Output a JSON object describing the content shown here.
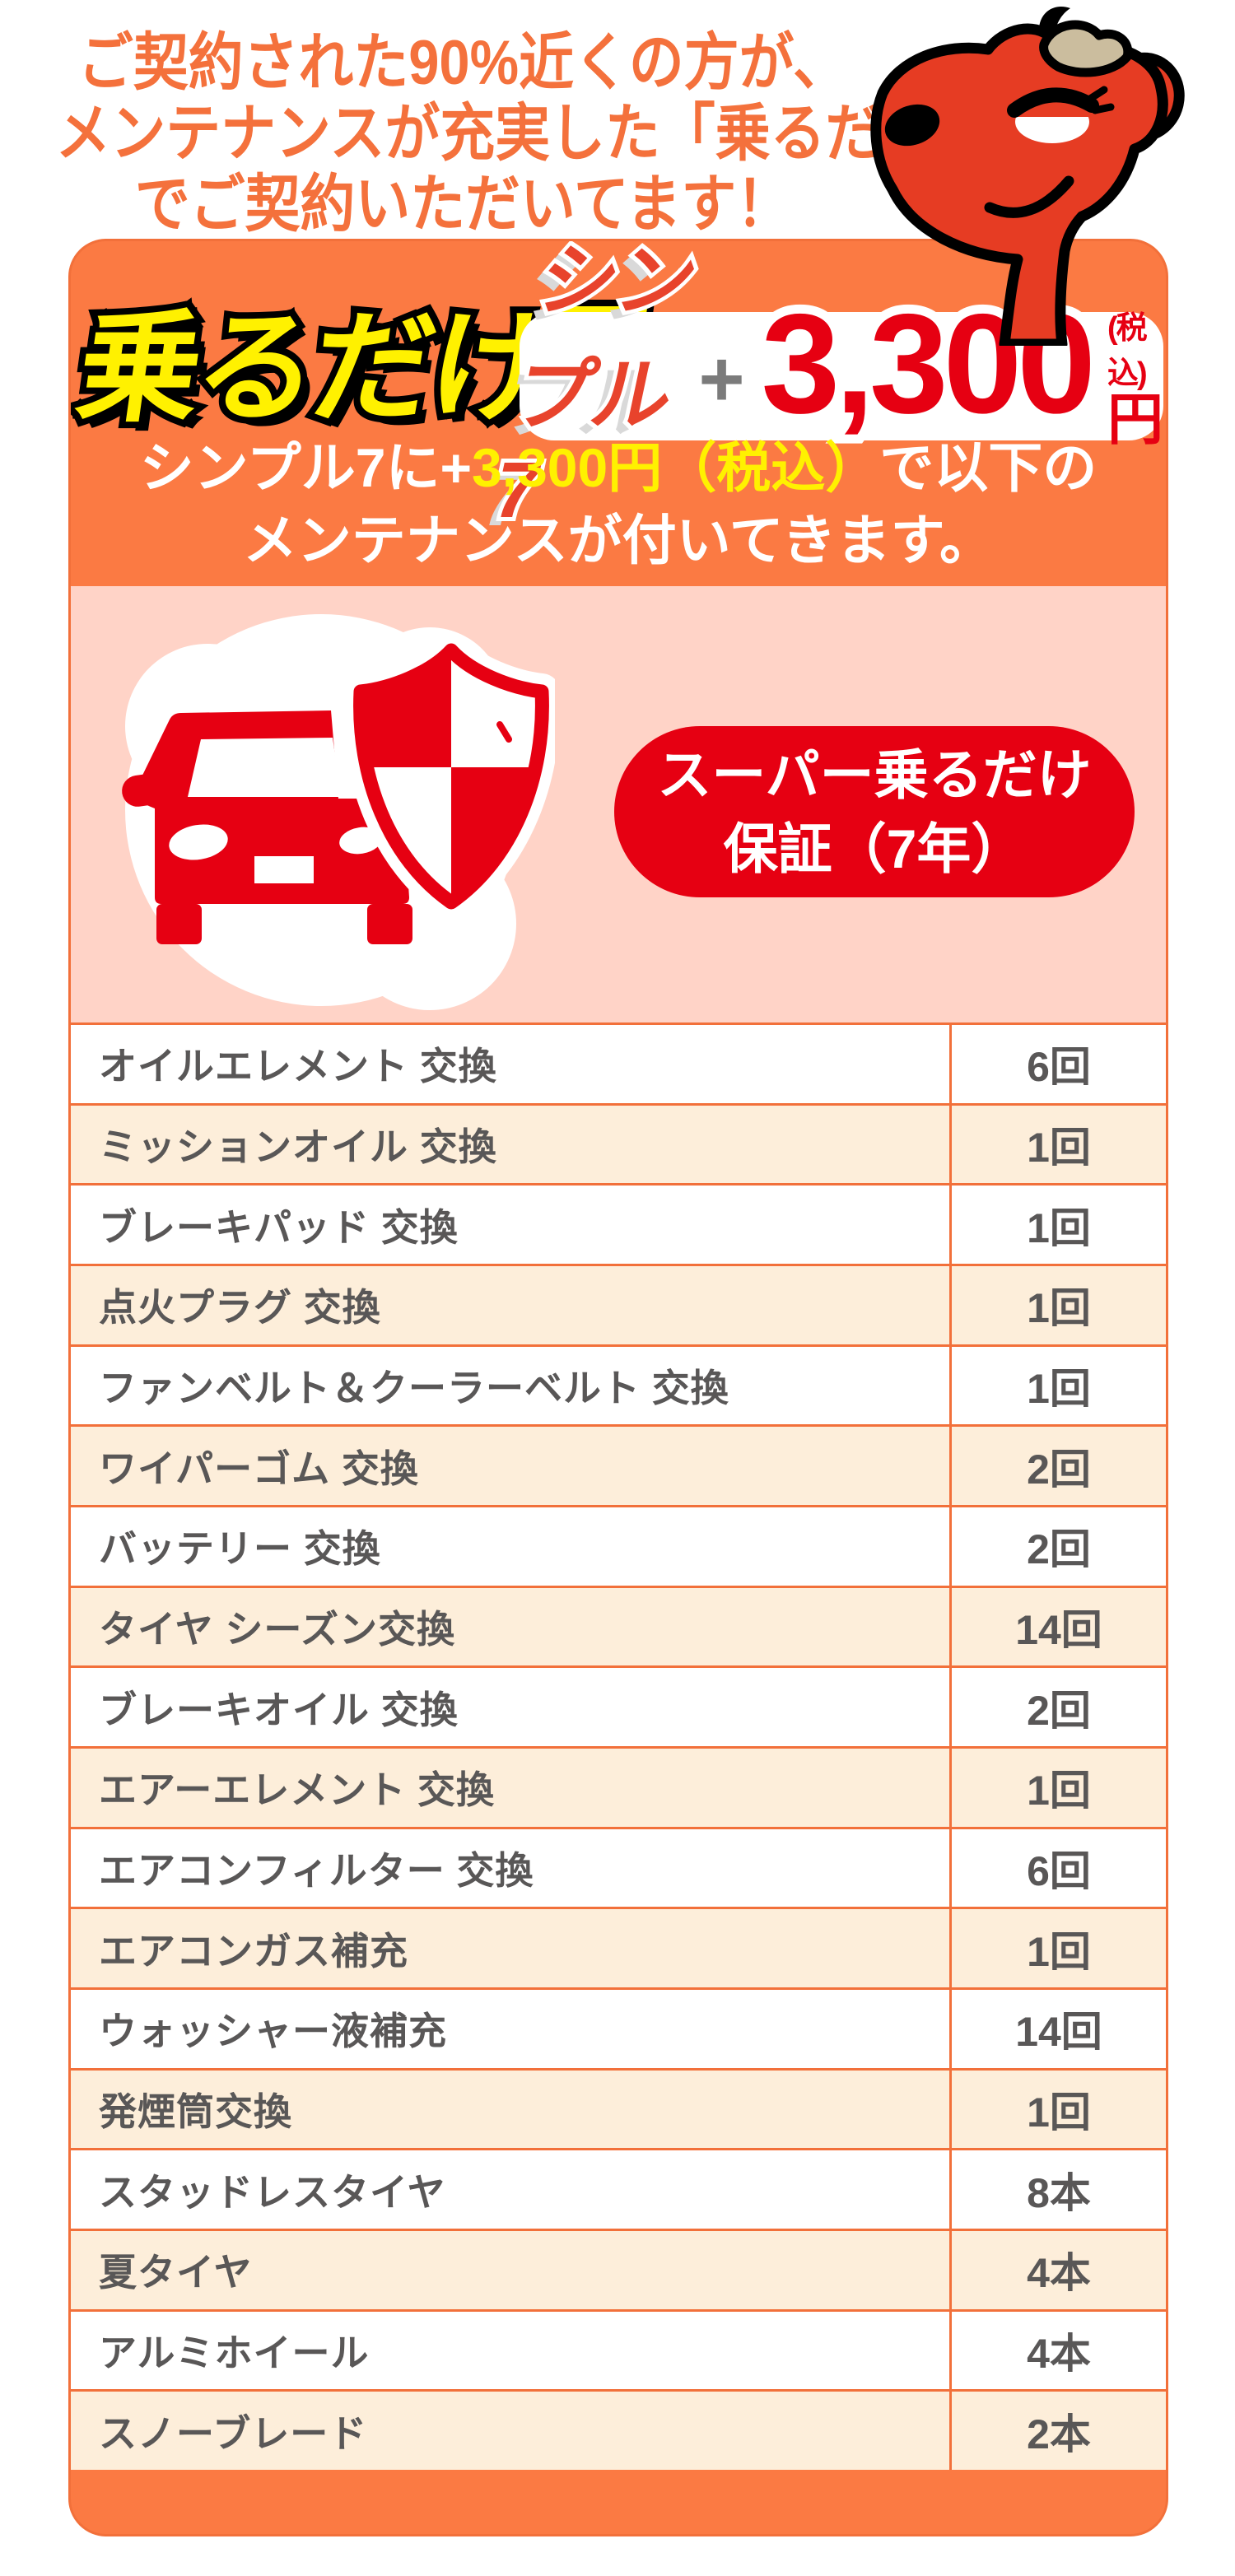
{
  "colors": {
    "header_orange": "#fb7a43",
    "divider_orange": "#f2703a",
    "heading_text_orange": "#f4713c",
    "pink_section": "#ffd3c7",
    "cream_row": "#fdeeda",
    "accent_red": "#e60012",
    "mascot_red": "#e63c23",
    "logo_yellow": "#fff100",
    "table_text_gray": "#595757"
  },
  "heading": {
    "line1": "ご契約された90%近くの方が、",
    "line2": "メンテナンスが充実した「乗るだけ7」",
    "line3": "でご契約いただいてます！"
  },
  "mascot": {
    "name": "red-cow-mascot"
  },
  "card": {
    "logo": {
      "main": "乗るだけ",
      "seven": "7"
    },
    "plan_pill": {
      "plan_name": "シンプル7",
      "plus": "+",
      "price": "3,300",
      "tax_note": "(税込)",
      "unit": "円"
    },
    "tagline": {
      "line1_pre": "シンプル7に+",
      "line1_highlight": "3,300円（税込）",
      "line1_post": "で以下の",
      "line2": "メンテナンスが付いてきます。"
    },
    "guarantee_badge": {
      "line1": "スーパー乗るだけ",
      "line2": "保証（7年）"
    }
  },
  "table": {
    "rows": [
      {
        "label": "オイルエレメント 交換",
        "count": "6回"
      },
      {
        "label": "ミッションオイル 交換",
        "count": "1回"
      },
      {
        "label": "ブレーキパッド 交換",
        "count": "1回"
      },
      {
        "label": "点火プラグ 交換",
        "count": "1回"
      },
      {
        "label": "ファンベルト＆クーラーベルト 交換",
        "count": "1回"
      },
      {
        "label": "ワイパーゴム 交換",
        "count": "2回"
      },
      {
        "label": "バッテリー 交換",
        "count": "2回"
      },
      {
        "label": "タイヤ シーズン交換",
        "count": "14回"
      },
      {
        "label": "ブレーキオイル 交換",
        "count": "2回"
      },
      {
        "label": "エアーエレメント 交換",
        "count": "1回"
      },
      {
        "label": "エアコンフィルター 交換",
        "count": "6回"
      },
      {
        "label": "エアコンガス補充",
        "count": "1回"
      },
      {
        "label": "ウォッシャー液補充",
        "count": "14回"
      },
      {
        "label": "発煙筒交換",
        "count": "1回"
      },
      {
        "label": "スタッドレスタイヤ",
        "count": "8本"
      },
      {
        "label": "夏タイヤ",
        "count": "4本"
      },
      {
        "label": "アルミホイール",
        "count": "4本"
      },
      {
        "label": "スノーブレード",
        "count": "2本"
      }
    ]
  }
}
